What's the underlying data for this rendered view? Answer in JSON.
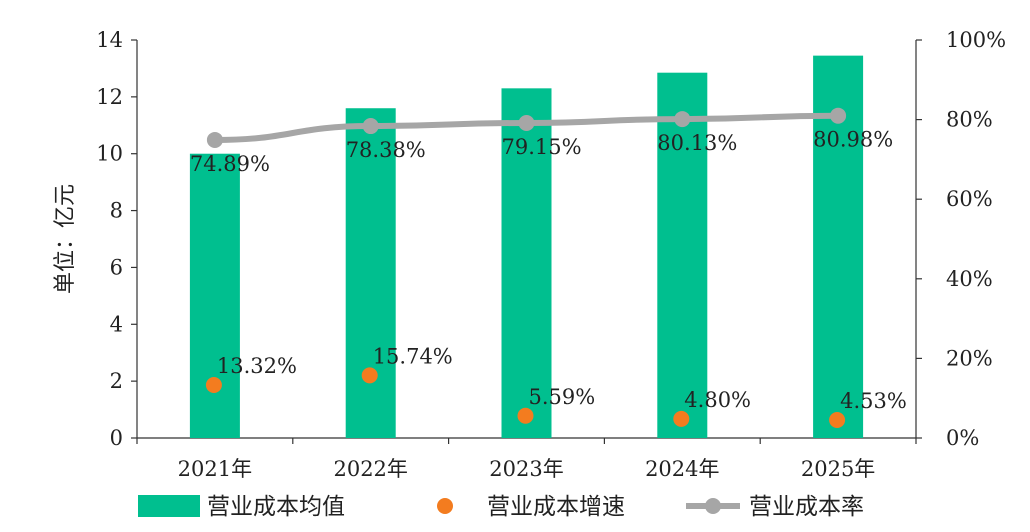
{
  "chart_data": {
    "type": "bar",
    "categories": [
      "2021年",
      "2022年",
      "2023年",
      "2024年",
      "2025年"
    ],
    "ylabel": "单位：亿元",
    "ylim": [
      0,
      14
    ],
    "y_ticks": [
      "0",
      "2",
      "4",
      "6",
      "8",
      "10",
      "12",
      "14"
    ],
    "y2lim": [
      0,
      1
    ],
    "y2_ticks": [
      "0%",
      "20%",
      "40%",
      "60%",
      "80%",
      "100%"
    ],
    "grid": false,
    "legend_position": "bottom",
    "colors": {
      "bar": "#00BF8F",
      "growth": "#F37C1F",
      "rate": "#A6A6A6",
      "axis": "#333333"
    },
    "series": [
      {
        "name": "营业成本均值",
        "type": "bar",
        "axis": "left",
        "values": [
          10.0,
          11.6,
          12.3,
          12.85,
          13.45
        ]
      },
      {
        "name": "营业成本增速",
        "type": "scatter",
        "axis": "right",
        "values": [
          0.1332,
          0.1574,
          0.0559,
          0.048,
          0.0453
        ],
        "labels": [
          "13.32%",
          "15.74%",
          "5.59%",
          "4.80%",
          "4.53%"
        ]
      },
      {
        "name": "营业成本率",
        "type": "line",
        "axis": "right",
        "values": [
          0.7489,
          0.7838,
          0.7915,
          0.8013,
          0.8098
        ],
        "labels": [
          "74.89%",
          "78.38%",
          "79.15%",
          "80.13%",
          "80.98%"
        ]
      }
    ]
  }
}
